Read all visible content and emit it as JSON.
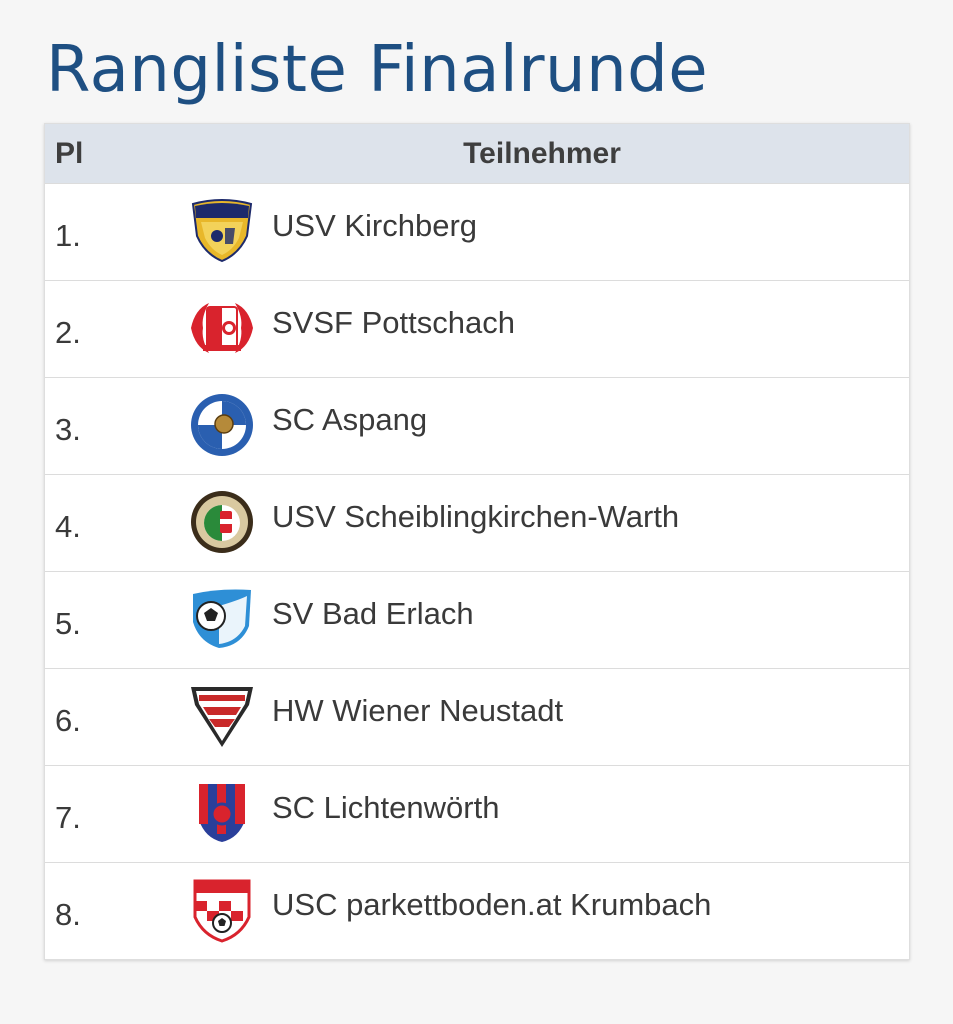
{
  "title": "Rangliste Finalrunde",
  "table": {
    "headers": {
      "place": "Pl",
      "team": "Teilnehmer"
    },
    "rows": [
      {
        "rank": "1.",
        "team": "USV Kirchberg",
        "logo": "usv-kirchberg-crest-icon"
      },
      {
        "rank": "2.",
        "team": "SVSF Pottschach",
        "logo": "svsf-pottschach-crest-icon"
      },
      {
        "rank": "3.",
        "team": "SC Aspang",
        "logo": "sc-aspang-crest-icon"
      },
      {
        "rank": "4.",
        "team": "USV Scheiblingkirchen-Warth",
        "logo": "usv-scheiblingkirchen-crest-icon"
      },
      {
        "rank": "5.",
        "team": "SV Bad Erlach",
        "logo": "sv-bad-erlach-crest-icon"
      },
      {
        "rank": "6.",
        "team": "HW Wiener Neustadt",
        "logo": "hw-wiener-neustadt-crest-icon"
      },
      {
        "rank": "7.",
        "team": "SC Lichtenwörth",
        "logo": "sc-lichtenwoerth-crest-icon"
      },
      {
        "rank": "8.",
        "team": "USC parkettboden.at Krumbach",
        "logo": "usc-krumbach-crest-icon"
      }
    ]
  },
  "colors": {
    "title": "#1e4f82",
    "header_bg": "#dde3eb",
    "text": "#3a3a3a"
  }
}
